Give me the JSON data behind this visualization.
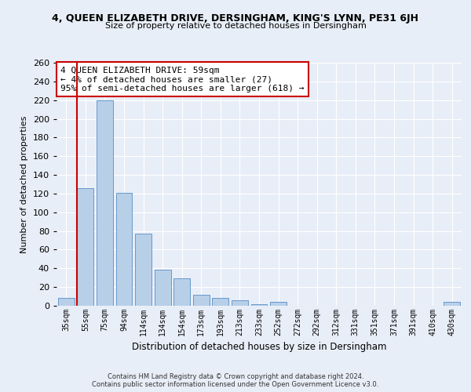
{
  "title_main": "4, QUEEN ELIZABETH DRIVE, DERSINGHAM, KING'S LYNN, PE31 6JH",
  "title_sub": "Size of property relative to detached houses in Dersingham",
  "xlabel": "Distribution of detached houses by size in Dersingham",
  "ylabel": "Number of detached properties",
  "bar_labels": [
    "35sqm",
    "55sqm",
    "75sqm",
    "94sqm",
    "114sqm",
    "134sqm",
    "154sqm",
    "173sqm",
    "193sqm",
    "213sqm",
    "233sqm",
    "252sqm",
    "272sqm",
    "292sqm",
    "312sqm",
    "331sqm",
    "351sqm",
    "371sqm",
    "391sqm",
    "410sqm",
    "430sqm"
  ],
  "bar_values": [
    8,
    126,
    220,
    121,
    77,
    39,
    29,
    12,
    8,
    6,
    2,
    4,
    0,
    0,
    0,
    0,
    0,
    0,
    0,
    0,
    4
  ],
  "bar_color": "#b8cfe8",
  "bar_edge_color": "#6699cc",
  "marker_line_color": "#cc0000",
  "annotation_text": "4 QUEEN ELIZABETH DRIVE: 59sqm\n← 4% of detached houses are smaller (27)\n95% of semi-detached houses are larger (618) →",
  "annotation_box_color": "#ffffff",
  "annotation_box_edge": "#cc0000",
  "ylim": [
    0,
    260
  ],
  "yticks": [
    0,
    20,
    40,
    60,
    80,
    100,
    120,
    140,
    160,
    180,
    200,
    220,
    240,
    260
  ],
  "background_color": "#e8eef7",
  "plot_bg_color": "#e8eef7",
  "grid_color": "#ffffff",
  "footer_line1": "Contains HM Land Registry data © Crown copyright and database right 2024.",
  "footer_line2": "Contains public sector information licensed under the Open Government Licence v3.0."
}
